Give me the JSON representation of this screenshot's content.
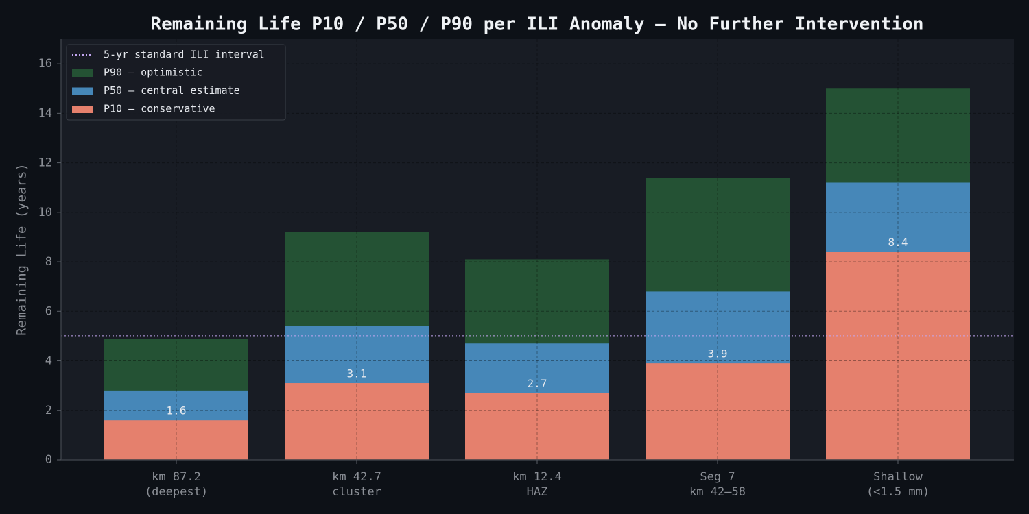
{
  "chart_data": {
    "type": "overlay_bar",
    "title": "Remaining Life P10 / P50 / P90 per ILI Anomaly — No Further Intervention",
    "y_label": "Remaining Life (years)",
    "categories": [
      [
        "km 87.2",
        "(deepest)"
      ],
      [
        "km 42.7",
        "cluster"
      ],
      [
        "km 12.4",
        "HAZ"
      ],
      [
        "Seg 7",
        "km 42–58"
      ],
      [
        "Shallow",
        "(<1.5 mm)"
      ]
    ],
    "series": [
      {
        "name": "P90 — optimistic",
        "color": "#245234",
        "values": [
          4.9,
          9.2,
          8.1,
          11.4,
          15.0
        ]
      },
      {
        "name": "P50 — central estimate",
        "color": "#4687b8",
        "values": [
          2.8,
          5.4,
          4.7,
          6.8,
          11.2
        ]
      },
      {
        "name": "P10 — conservative",
        "color": "#e5806d",
        "values": [
          1.6,
          3.1,
          2.7,
          3.9,
          8.4
        ],
        "show_value_labels": true
      }
    ],
    "reference_line": {
      "value": 5,
      "label": "5-yr standard ILI interval",
      "color": "#c3a6f0"
    },
    "ylim": [
      0,
      17
    ],
    "yticks": [
      0,
      2,
      4,
      6,
      8,
      10,
      12,
      14,
      16
    ],
    "grid": true,
    "legend": "upper left"
  }
}
